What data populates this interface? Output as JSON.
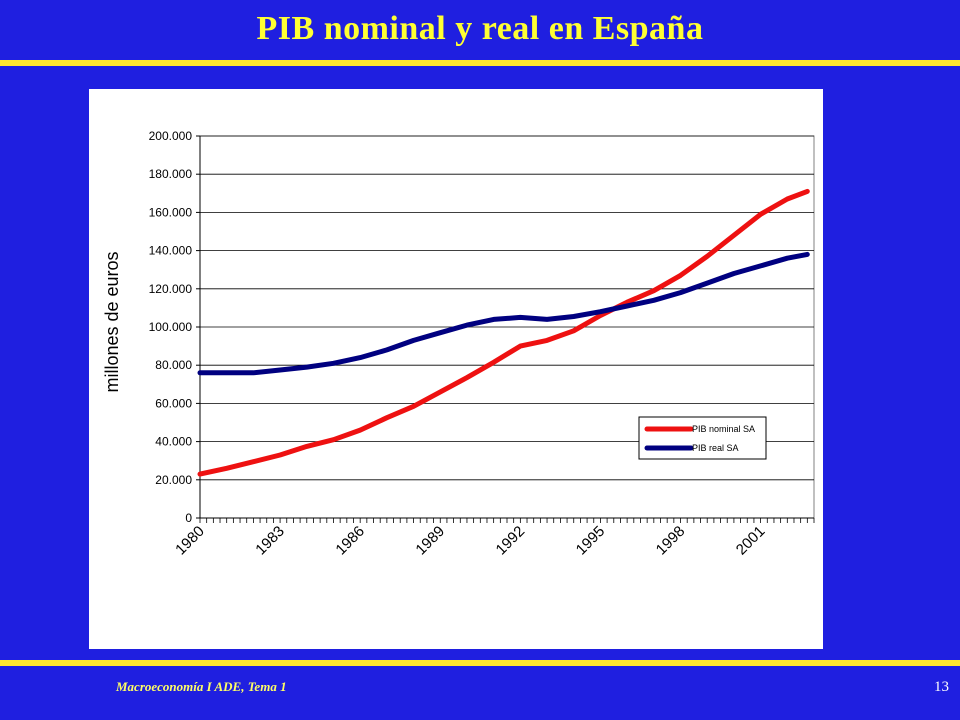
{
  "slide": {
    "title": "PIB nominal y real en España",
    "footer": "Macroeconomía I ADE, Tema 1",
    "page_number": "13"
  },
  "colors": {
    "background": "#1f1fe0",
    "title": "#ffff33",
    "rule": "#ffe62e",
    "nominal": "#ee1111",
    "real": "#000080"
  },
  "chart_data": {
    "type": "line",
    "title": "",
    "xlabel": "",
    "ylabel": "millones de euros",
    "ylim": [
      0,
      200000
    ],
    "yticks": [
      0,
      20000,
      40000,
      60000,
      80000,
      100000,
      120000,
      140000,
      160000,
      180000,
      200000
    ],
    "ytick_labels": [
      "0",
      "20.000",
      "40.000",
      "60.000",
      "80.000",
      "100.000",
      "120.000",
      "140.000",
      "160.000",
      "180.000",
      "200.000"
    ],
    "xlim": [
      1980,
      2003
    ],
    "xtick_years": [
      1980,
      1983,
      1986,
      1989,
      1992,
      1995,
      1998,
      2001
    ],
    "xtick_labels": [
      "1980",
      "1983",
      "1986",
      "1989",
      "1992",
      "1995",
      "1998",
      "2001"
    ],
    "grid": "horizontal",
    "legend_position": "right",
    "series": [
      {
        "name": "PIB nominal SA",
        "color": "#ee1111",
        "x": [
          1980,
          1981,
          1982,
          1983,
          1984,
          1985,
          1986,
          1987,
          1988,
          1989,
          1990,
          1991,
          1992,
          1993,
          1994,
          1995,
          1996,
          1997,
          1998,
          1999,
          2000,
          2001,
          2002,
          2002.75
        ],
        "values": [
          23000,
          26000,
          29500,
          33000,
          37500,
          41000,
          46000,
          52500,
          58500,
          66000,
          73500,
          81500,
          90000,
          93000,
          98000,
          106000,
          113000,
          119000,
          127000,
          137000,
          148000,
          159000,
          167000,
          171000
        ]
      },
      {
        "name": "PIB real SA",
        "color": "#000080",
        "x": [
          1980,
          1981,
          1982,
          1983,
          1984,
          1985,
          1986,
          1987,
          1988,
          1989,
          1990,
          1991,
          1992,
          1993,
          1994,
          1995,
          1996,
          1997,
          1998,
          1999,
          2000,
          2001,
          2002,
          2002.75
        ],
        "values": [
          76000,
          76000,
          76000,
          77500,
          79000,
          81000,
          84000,
          88000,
          93000,
          97000,
          101000,
          104000,
          105000,
          104000,
          105500,
          108000,
          111000,
          114000,
          118000,
          123000,
          128000,
          132000,
          136000,
          138000
        ]
      }
    ]
  }
}
